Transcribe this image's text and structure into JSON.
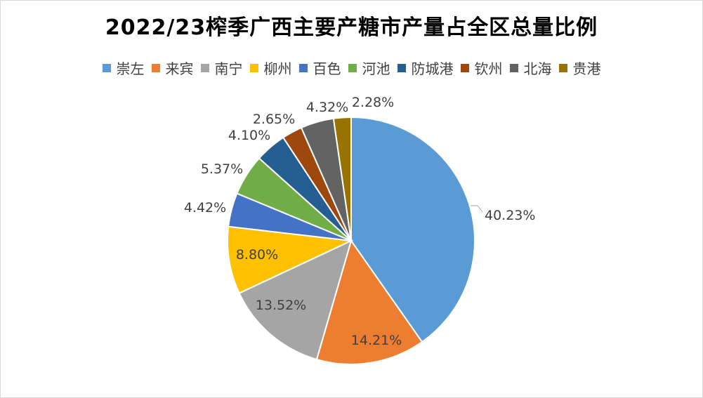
{
  "chart_data": {
    "type": "pie",
    "title": "2022/23榨季广西主要产糖市产量占全区总量比例",
    "categories": [
      "崇左",
      "来宾",
      "南宁",
      "柳州",
      "百色",
      "河池",
      "防城港",
      "钦州",
      "北海",
      "贵港"
    ],
    "values": [
      40.23,
      14.21,
      13.52,
      8.8,
      4.42,
      5.37,
      4.1,
      2.65,
      4.32,
      2.28
    ],
    "labels": [
      "40.23%",
      "14.21%",
      "13.52%",
      "8.80%",
      "4.42%",
      "5.37%",
      "4.10%",
      "2.65%",
      "4.32%",
      "2.28%"
    ],
    "colors": [
      "#5B9BD5",
      "#ED7D31",
      "#A5A5A5",
      "#FFC000",
      "#4472C4",
      "#70AD47",
      "#255E91",
      "#9E480E",
      "#636363",
      "#997300"
    ],
    "legend_position": "top"
  }
}
